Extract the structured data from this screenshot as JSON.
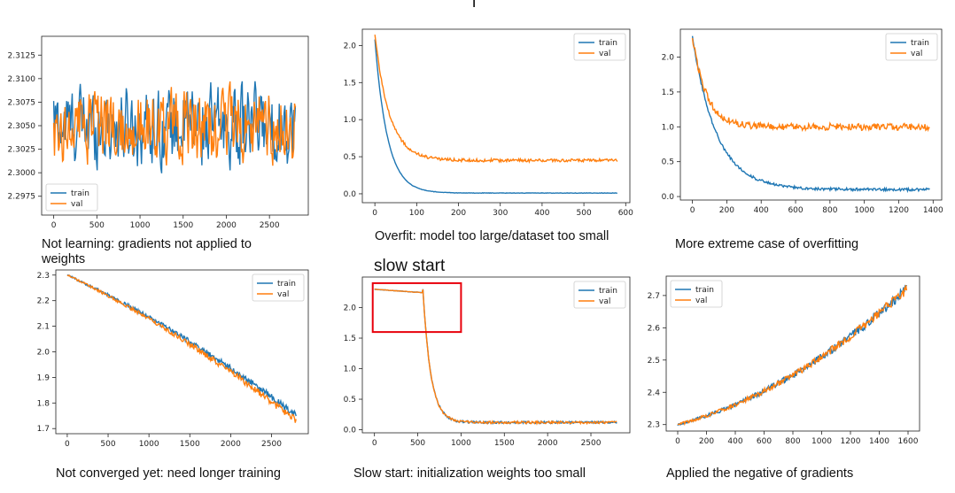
{
  "heading_top": "l",
  "subheading": "slow start",
  "colors": {
    "train": "#1f77b4",
    "val": "#ff7f0e",
    "highlight": "#e8000b"
  },
  "captions": [
    "Not learning: gradients not applied to weights",
    "Overfit: model too large/dataset too small",
    "More extreme case of overfitting",
    "Not converged yet: need longer training",
    "Slow start: initialization weights too small",
    "Applied the negative of gradients"
  ],
  "chart_data": [
    {
      "type": "line",
      "xlim": [
        -140,
        2950
      ],
      "ylim": [
        2.2955,
        2.3145
      ],
      "xticks": [
        0,
        500,
        1000,
        1500,
        2000,
        2500
      ],
      "yticks": [
        2.2975,
        2.3,
        2.3025,
        2.305,
        2.3075,
        2.31,
        2.3125
      ],
      "ytick_labels": [
        "2.2975",
        "2.3000",
        "2.3025",
        "2.3050",
        "2.3075",
        "2.3100",
        "2.3125"
      ],
      "legend": "lower-left",
      "pattern": "noise",
      "x_max": 2800,
      "mean": 2.305,
      "series": [
        {
          "name": "train",
          "amp": 0.0045
        },
        {
          "name": "val",
          "amp": 0.0042
        }
      ]
    },
    {
      "type": "line",
      "xlim": [
        -30,
        610
      ],
      "ylim": [
        -0.12,
        2.22
      ],
      "xticks": [
        0,
        100,
        200,
        300,
        400,
        500,
        600
      ],
      "yticks": [
        0.0,
        0.5,
        1.0,
        1.5,
        2.0
      ],
      "ytick_labels": [
        "0.0",
        "0.5",
        "1.0",
        "1.5",
        "2.0"
      ],
      "legend": "top-right",
      "pattern": "decay",
      "x_max": 580,
      "series": [
        {
          "name": "train",
          "start": 2.08,
          "end": 0.01,
          "tau": 30,
          "noise": 0.003
        },
        {
          "name": "val",
          "start": 2.15,
          "end": 0.45,
          "tau": 35,
          "noise": 0.02
        }
      ]
    },
    {
      "type": "line",
      "xlim": [
        -70,
        1450
      ],
      "ylim": [
        -0.05,
        2.4
      ],
      "xticks": [
        0,
        200,
        400,
        600,
        800,
        1000,
        1200,
        1400
      ],
      "yticks": [
        0.0,
        0.5,
        1.0,
        1.5,
        2.0
      ],
      "ytick_labels": [
        "0.0",
        "0.5",
        "1.0",
        "1.5",
        "2.0"
      ],
      "legend": "top-right",
      "pattern": "decay",
      "x_max": 1380,
      "series": [
        {
          "name": "train",
          "start": 2.3,
          "end": 0.1,
          "tau": 140,
          "noise": 0.02
        },
        {
          "name": "val",
          "start": 2.3,
          "end": 1.0,
          "tau": 80,
          "noise": 0.05
        }
      ]
    },
    {
      "type": "line",
      "xlim": [
        -140,
        2950
      ],
      "ylim": [
        1.68,
        2.32
      ],
      "xticks": [
        0,
        500,
        1000,
        1500,
        2000,
        2500
      ],
      "yticks": [
        1.7,
        1.8,
        1.9,
        2.0,
        2.1,
        2.2,
        2.3
      ],
      "ytick_labels": [
        "1.7",
        "1.8",
        "1.9",
        "2.0",
        "2.1",
        "2.2",
        "2.3"
      ],
      "legend": "top-right",
      "pattern": "linear",
      "x_max": 2800,
      "series": [
        {
          "name": "train",
          "start": 2.3,
          "end": 1.75,
          "noise": 0.012
        },
        {
          "name": "val",
          "start": 2.3,
          "end": 1.73,
          "noise": 0.012
        }
      ]
    },
    {
      "type": "line",
      "xlim": [
        -140,
        2950
      ],
      "ylim": [
        -0.05,
        2.5
      ],
      "xticks": [
        0,
        500,
        1000,
        1500,
        2000,
        2500
      ],
      "yticks": [
        0.0,
        0.5,
        1.0,
        1.5,
        2.0
      ],
      "ytick_labels": [
        "0.0",
        "0.5",
        "1.0",
        "1.5",
        "2.0"
      ],
      "legend": "top-right",
      "highlight_box": {
        "x": [
          -20,
          1000
        ],
        "y": [
          1.6,
          2.4
        ]
      },
      "pattern": "slowstart",
      "x_max": 2800,
      "series": [
        {
          "name": "train",
          "plateau": 2.3,
          "drop_at": 600,
          "end": 0.12,
          "noise": 0.02
        },
        {
          "name": "val",
          "plateau": 2.3,
          "drop_at": 600,
          "end": 0.12,
          "noise": 0.02
        }
      ]
    },
    {
      "type": "line",
      "xlim": [
        -80,
        1680
      ],
      "ylim": [
        2.28,
        2.76
      ],
      "xticks": [
        0,
        200,
        400,
        600,
        800,
        1000,
        1200,
        1400,
        1600
      ],
      "yticks": [
        2.3,
        2.4,
        2.5,
        2.6,
        2.7
      ],
      "ytick_labels": [
        "2.3",
        "2.4",
        "2.5",
        "2.6",
        "2.7"
      ],
      "legend": "top-left",
      "pattern": "growth",
      "x_max": 1590,
      "series": [
        {
          "name": "train",
          "start": 2.3,
          "end": 2.72,
          "noise": 0.012
        },
        {
          "name": "val",
          "start": 2.3,
          "end": 2.72,
          "noise": 0.012
        }
      ]
    }
  ]
}
